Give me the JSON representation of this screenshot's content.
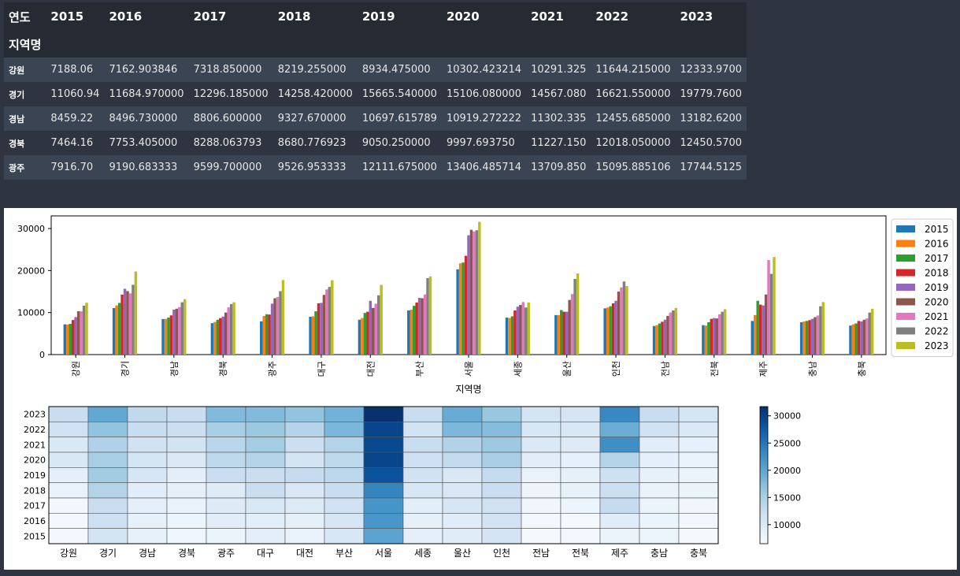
{
  "table": {
    "header_label_year": "연도",
    "header_label_region": "지역명",
    "years": [
      "2015",
      "2016",
      "2017",
      "2018",
      "2019",
      "2020",
      "2021",
      "2022",
      "2023"
    ],
    "rows": [
      {
        "region": "강원",
        "values": [
          "7188.06",
          "7162.903846",
          "7318.850000",
          "8219.255000",
          "8934.475000",
          "10302.423214",
          "10291.325",
          "11644.215000",
          "12333.9700"
        ]
      },
      {
        "region": "경기",
        "values": [
          "11060.94",
          "11684.970000",
          "12296.185000",
          "14258.420000",
          "15665.540000",
          "15106.080000",
          "14567.080",
          "16621.550000",
          "19779.7600"
        ]
      },
      {
        "region": "경남",
        "values": [
          "8459.22",
          "8496.730000",
          "8806.600000",
          "9327.670000",
          "10697.615789",
          "10919.272222",
          "11302.335",
          "12455.685000",
          "13182.6200"
        ]
      },
      {
        "region": "경북",
        "values": [
          "7464.16",
          "7753.405000",
          "8288.063793",
          "8680.776923",
          "9050.250000",
          "9997.693750",
          "11227.150",
          "12018.050000",
          "12450.5700"
        ]
      },
      {
        "region": "광주",
        "values": [
          "7916.70",
          "9190.683333",
          "9599.700000",
          "9526.953333",
          "12111.675000",
          "13406.485714",
          "13709.850",
          "15095.885106",
          "17744.5125"
        ]
      }
    ]
  },
  "chart_data": [
    {
      "type": "bar",
      "xlabel": "지역명",
      "ylabel": "",
      "ylim": [
        0,
        33000
      ],
      "yticks": [
        0,
        10000,
        20000,
        30000
      ],
      "legend_position": "outside-right",
      "categories": [
        "강원",
        "경기",
        "경남",
        "경북",
        "광주",
        "대구",
        "대전",
        "부산",
        "서울",
        "세종",
        "울산",
        "인천",
        "전남",
        "전북",
        "제주",
        "충남",
        "충북"
      ],
      "series": [
        {
          "name": "2015",
          "color": "#1f77b4",
          "values": [
            7188,
            11061,
            8459,
            7464,
            7917,
            9000,
            8300,
            10500,
            20300,
            8800,
            9400,
            11000,
            6800,
            7000,
            8000,
            7700,
            6900
          ]
        },
        {
          "name": "2016",
          "color": "#ff7f0e",
          "values": [
            7163,
            11685,
            8497,
            7753,
            9191,
            9100,
            8700,
            10700,
            21700,
            8700,
            9400,
            11200,
            7000,
            6900,
            9400,
            7900,
            7200
          ]
        },
        {
          "name": "2017",
          "color": "#2ca02c",
          "values": [
            7319,
            12296,
            8807,
            8288,
            9600,
            10300,
            9900,
            11600,
            21900,
            9100,
            10600,
            11500,
            7400,
            7700,
            12800,
            8000,
            7400
          ]
        },
        {
          "name": "2018",
          "color": "#d62728",
          "values": [
            8219,
            14258,
            9328,
            8681,
            9527,
            12200,
            10200,
            12400,
            23500,
            10500,
            10200,
            12200,
            7800,
            8500,
            11900,
            8200,
            8000
          ]
        },
        {
          "name": "2019",
          "color": "#9467bd",
          "values": [
            8934,
            15666,
            10698,
            9050,
            12112,
            12300,
            12800,
            13500,
            28400,
            11400,
            10200,
            12800,
            8300,
            8700,
            11700,
            8500,
            7900
          ]
        },
        {
          "name": "2020",
          "color": "#8c564b",
          "values": [
            10302,
            15106,
            10919,
            9998,
            13406,
            14200,
            11100,
            13400,
            29700,
            11800,
            13000,
            15000,
            9200,
            8600,
            14300,
            8900,
            8300
          ]
        },
        {
          "name": "2021",
          "color": "#e377c2",
          "values": [
            10291,
            14567,
            11302,
            11227,
            13710,
            15500,
            12100,
            14300,
            29300,
            12500,
            14400,
            16000,
            10000,
            9600,
            22500,
            9300,
            8600
          ]
        },
        {
          "name": "2022",
          "color": "#7f7f7f",
          "values": [
            11644,
            16622,
            12456,
            12018,
            15096,
            16100,
            14100,
            18200,
            29600,
            11200,
            18000,
            17400,
            10500,
            10200,
            19200,
            11500,
            10000
          ]
        },
        {
          "name": "2023",
          "color": "#bcbd22",
          "values": [
            12334,
            19780,
            13183,
            12451,
            17745,
            17700,
            16600,
            18600,
            31600,
            12400,
            19300,
            16300,
            11100,
            10800,
            23200,
            12500,
            10900
          ]
        }
      ]
    },
    {
      "type": "heatmap",
      "x": [
        "강원",
        "경기",
        "경남",
        "경북",
        "광주",
        "대구",
        "대전",
        "부산",
        "서울",
        "세종",
        "울산",
        "인천",
        "전남",
        "전북",
        "제주",
        "충남",
        "충북"
      ],
      "y": [
        "2023",
        "2022",
        "2021",
        "2020",
        "2019",
        "2018",
        "2017",
        "2016",
        "2015"
      ],
      "colorbar_range": [
        6500,
        31700
      ],
      "colorbar_ticks": [
        10000,
        15000,
        20000,
        25000,
        30000
      ],
      "colormap": "Blues"
    }
  ]
}
